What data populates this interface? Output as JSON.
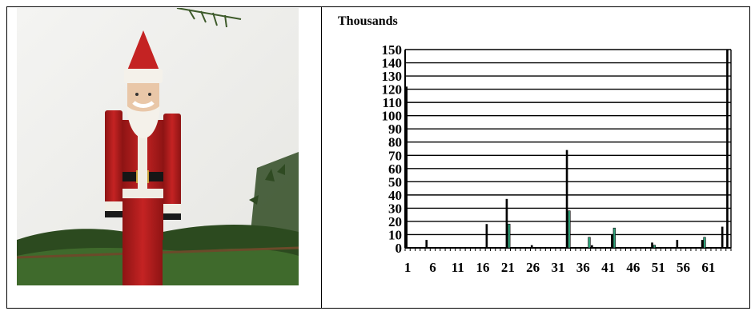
{
  "chart_data": {
    "type": "bar",
    "title": "Thousands",
    "xlabel": "",
    "ylabel": "",
    "ylim": [
      0,
      150
    ],
    "yticks": [
      0,
      10,
      20,
      30,
      40,
      50,
      60,
      70,
      80,
      90,
      100,
      110,
      120,
      130,
      140,
      150
    ],
    "xtick_labels": [
      "1",
      "6",
      "11",
      "16",
      "21",
      "26",
      "31",
      "36",
      "41",
      "46",
      "51",
      "56",
      "61"
    ],
    "grid": true,
    "legend": "none",
    "series": [
      {
        "color": "#000000",
        "values": [
          122,
          0,
          0,
          0,
          6,
          0,
          0,
          0,
          0,
          0,
          0,
          0,
          0,
          0,
          0,
          0,
          18,
          0,
          0,
          0,
          37,
          0,
          0,
          0,
          0,
          2,
          0,
          0,
          0,
          0,
          0,
          0,
          74,
          0,
          0,
          0,
          0,
          2,
          0,
          0,
          0,
          10,
          0,
          0,
          0,
          0,
          0,
          0,
          0,
          4,
          0,
          0,
          0,
          0,
          6,
          0,
          0,
          0,
          0,
          6,
          0,
          0,
          0,
          16,
          150
        ]
      },
      {
        "color": "#2ea37a",
        "values": [
          0,
          0,
          0,
          0,
          0,
          0,
          0,
          0,
          0,
          0,
          0,
          0,
          0,
          0,
          0,
          0,
          0,
          0,
          0,
          0,
          18,
          0,
          0,
          0,
          0,
          0,
          0,
          0,
          0,
          0,
          0,
          0,
          28,
          0,
          0,
          0,
          8,
          0,
          0,
          0,
          0,
          15,
          0,
          0,
          0,
          0,
          0,
          0,
          0,
          2,
          0,
          0,
          0,
          0,
          0,
          0,
          0,
          0,
          0,
          8,
          0,
          0,
          0,
          0,
          0
        ]
      }
    ]
  }
}
